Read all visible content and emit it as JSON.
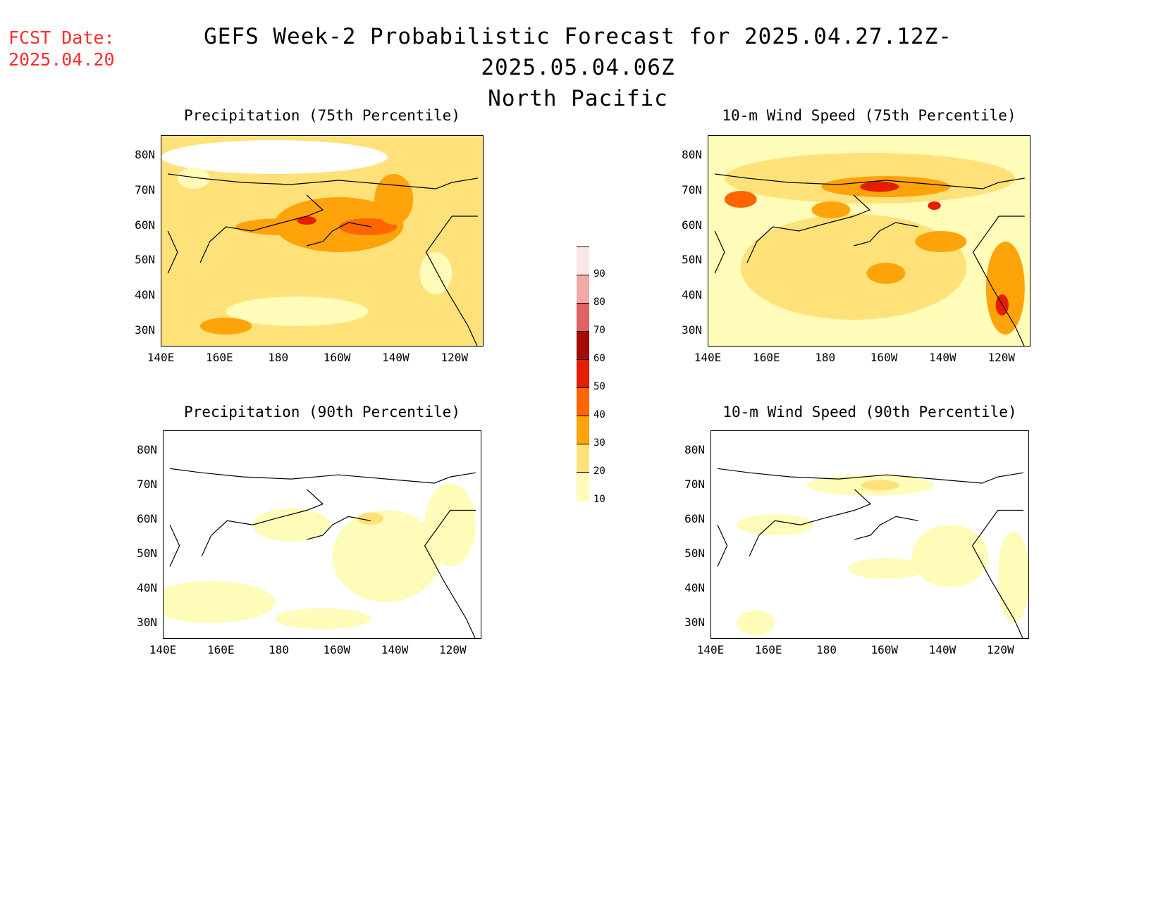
{
  "header": {
    "fcst_label": "FCST Date:",
    "fcst_date": "2025.04.20",
    "title_line1": "GEFS Week-2 Probabilistic Forecast for 2025.04.27.12Z-2025.05.04.06Z",
    "title_line2": "North Pacific"
  },
  "axes": {
    "lat_labels": [
      "80N",
      "70N",
      "60N",
      "50N",
      "40N",
      "30N"
    ],
    "lon_labels": [
      "140E",
      "160E",
      "180",
      "160W",
      "140W",
      "120W"
    ]
  },
  "panels": [
    {
      "id": "precip75",
      "title": "Precipitation (75th Percentile)"
    },
    {
      "id": "wind75",
      "title": "10-m Wind Speed (75th Percentile)"
    },
    {
      "id": "precip90",
      "title": "Precipitation (90th Percentile)"
    },
    {
      "id": "wind90",
      "title": "10-m Wind Speed (90th Percentile)"
    }
  ],
  "colorbar": {
    "levels": [
      "10",
      "20",
      "30",
      "40",
      "50",
      "60",
      "70",
      "80",
      "90"
    ],
    "colors": [
      "#fffbb8",
      "#ffe17a",
      "#ffa30b",
      "#ff6500",
      "#e61d00",
      "#a50c00",
      "#df6364",
      "#f3a8a8",
      "#fde6e6"
    ]
  }
}
